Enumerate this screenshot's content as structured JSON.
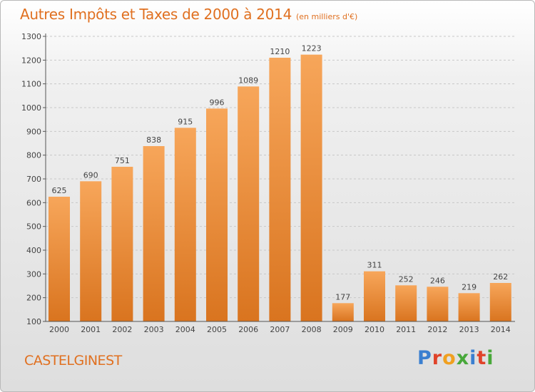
{
  "title": "Autres Impôts et Taxes de 2000 à 2014",
  "unit_note": "(en milliers d'€)",
  "city": "CASTELGINEST",
  "logo": {
    "text": "Proxiti",
    "letters": [
      {
        "ch": "P",
        "color": "#3a7fd0"
      },
      {
        "ch": "r",
        "color": "#e0432a"
      },
      {
        "ch": "o",
        "color": "#f0a020"
      },
      {
        "ch": "x",
        "color": "#48a83a"
      },
      {
        "ch": "i",
        "color": "#3a7fd0"
      },
      {
        "ch": "t",
        "color": "#e0432a"
      },
      {
        "ch": "i",
        "color": "#48a83a"
      }
    ]
  },
  "colors": {
    "accent": "#e07020",
    "bar_light": "#f7a65a",
    "bar_dark": "#d9741f",
    "axis": "#555555",
    "grid": "#c8c8c8"
  },
  "chart_data": {
    "type": "bar",
    "title": "Autres Impôts et Taxes de 2000 à 2014",
    "xlabel": "",
    "ylabel": "",
    "categories": [
      "2000",
      "2001",
      "2002",
      "2003",
      "2004",
      "2005",
      "2006",
      "2007",
      "2008",
      "2009",
      "2010",
      "2011",
      "2012",
      "2013",
      "2014"
    ],
    "values": [
      625,
      690,
      751,
      838,
      915,
      996,
      1089,
      1210,
      1223,
      177,
      311,
      252,
      246,
      219,
      262
    ],
    "ylim": [
      100,
      1300
    ],
    "yticks": [
      100,
      200,
      300,
      400,
      500,
      600,
      700,
      800,
      900,
      1000,
      1100,
      1200,
      1300
    ],
    "grid": "horizontal dashed",
    "legend": "none"
  }
}
